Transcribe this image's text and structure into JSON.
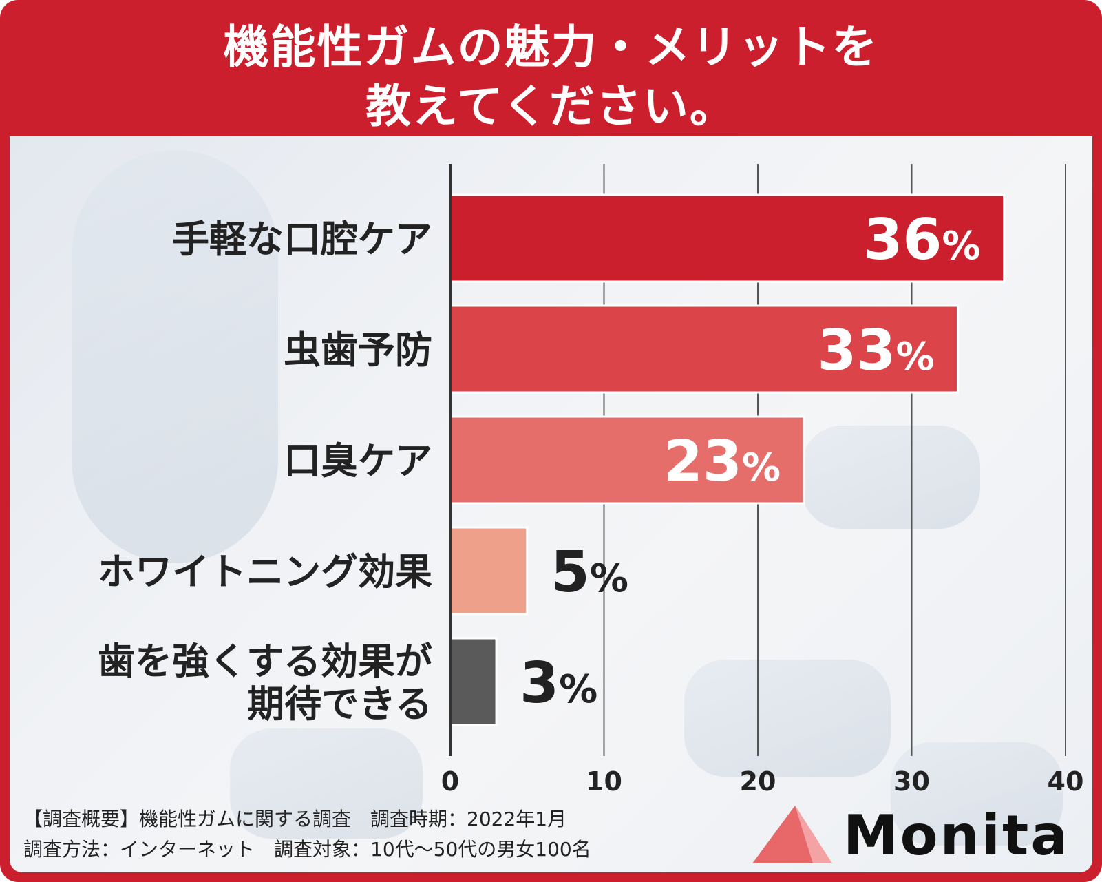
{
  "title": {
    "line1": "機能性ガムの魅力・メリットを",
    "line2": "教えてください。"
  },
  "footer": {
    "line1": "【調査概要】機能性ガムに関する調査　調査時期：2022年1月",
    "line2": "調査方法：インターネット　調査対象：10代〜50代の男女100名"
  },
  "logo": {
    "text": "Monita",
    "mark_color": "#e8686a"
  },
  "colors": {
    "frame": "#cc1f2d",
    "axis": "#333333",
    "grid": "#555555"
  },
  "chart_data": {
    "type": "bar",
    "orientation": "horizontal",
    "categories": [
      [
        "手軽な口腔ケア"
      ],
      [
        "虫歯予防"
      ],
      [
        "口臭ケア"
      ],
      [
        "ホワイトニング効果"
      ],
      [
        "歯を強くする効果が",
        "期待できる"
      ]
    ],
    "values": [
      36,
      33,
      23,
      5,
      3
    ],
    "value_labels": [
      "36",
      "33",
      "23",
      "5",
      "3"
    ],
    "unit": "%",
    "bar_colors": [
      "#cc1f2d",
      "#db4448",
      "#e56e6a",
      "#eea08a",
      "#5a5a5a"
    ],
    "xlim": [
      0,
      40
    ],
    "xticks": [
      0,
      10,
      20,
      30,
      40
    ],
    "grid": true
  }
}
